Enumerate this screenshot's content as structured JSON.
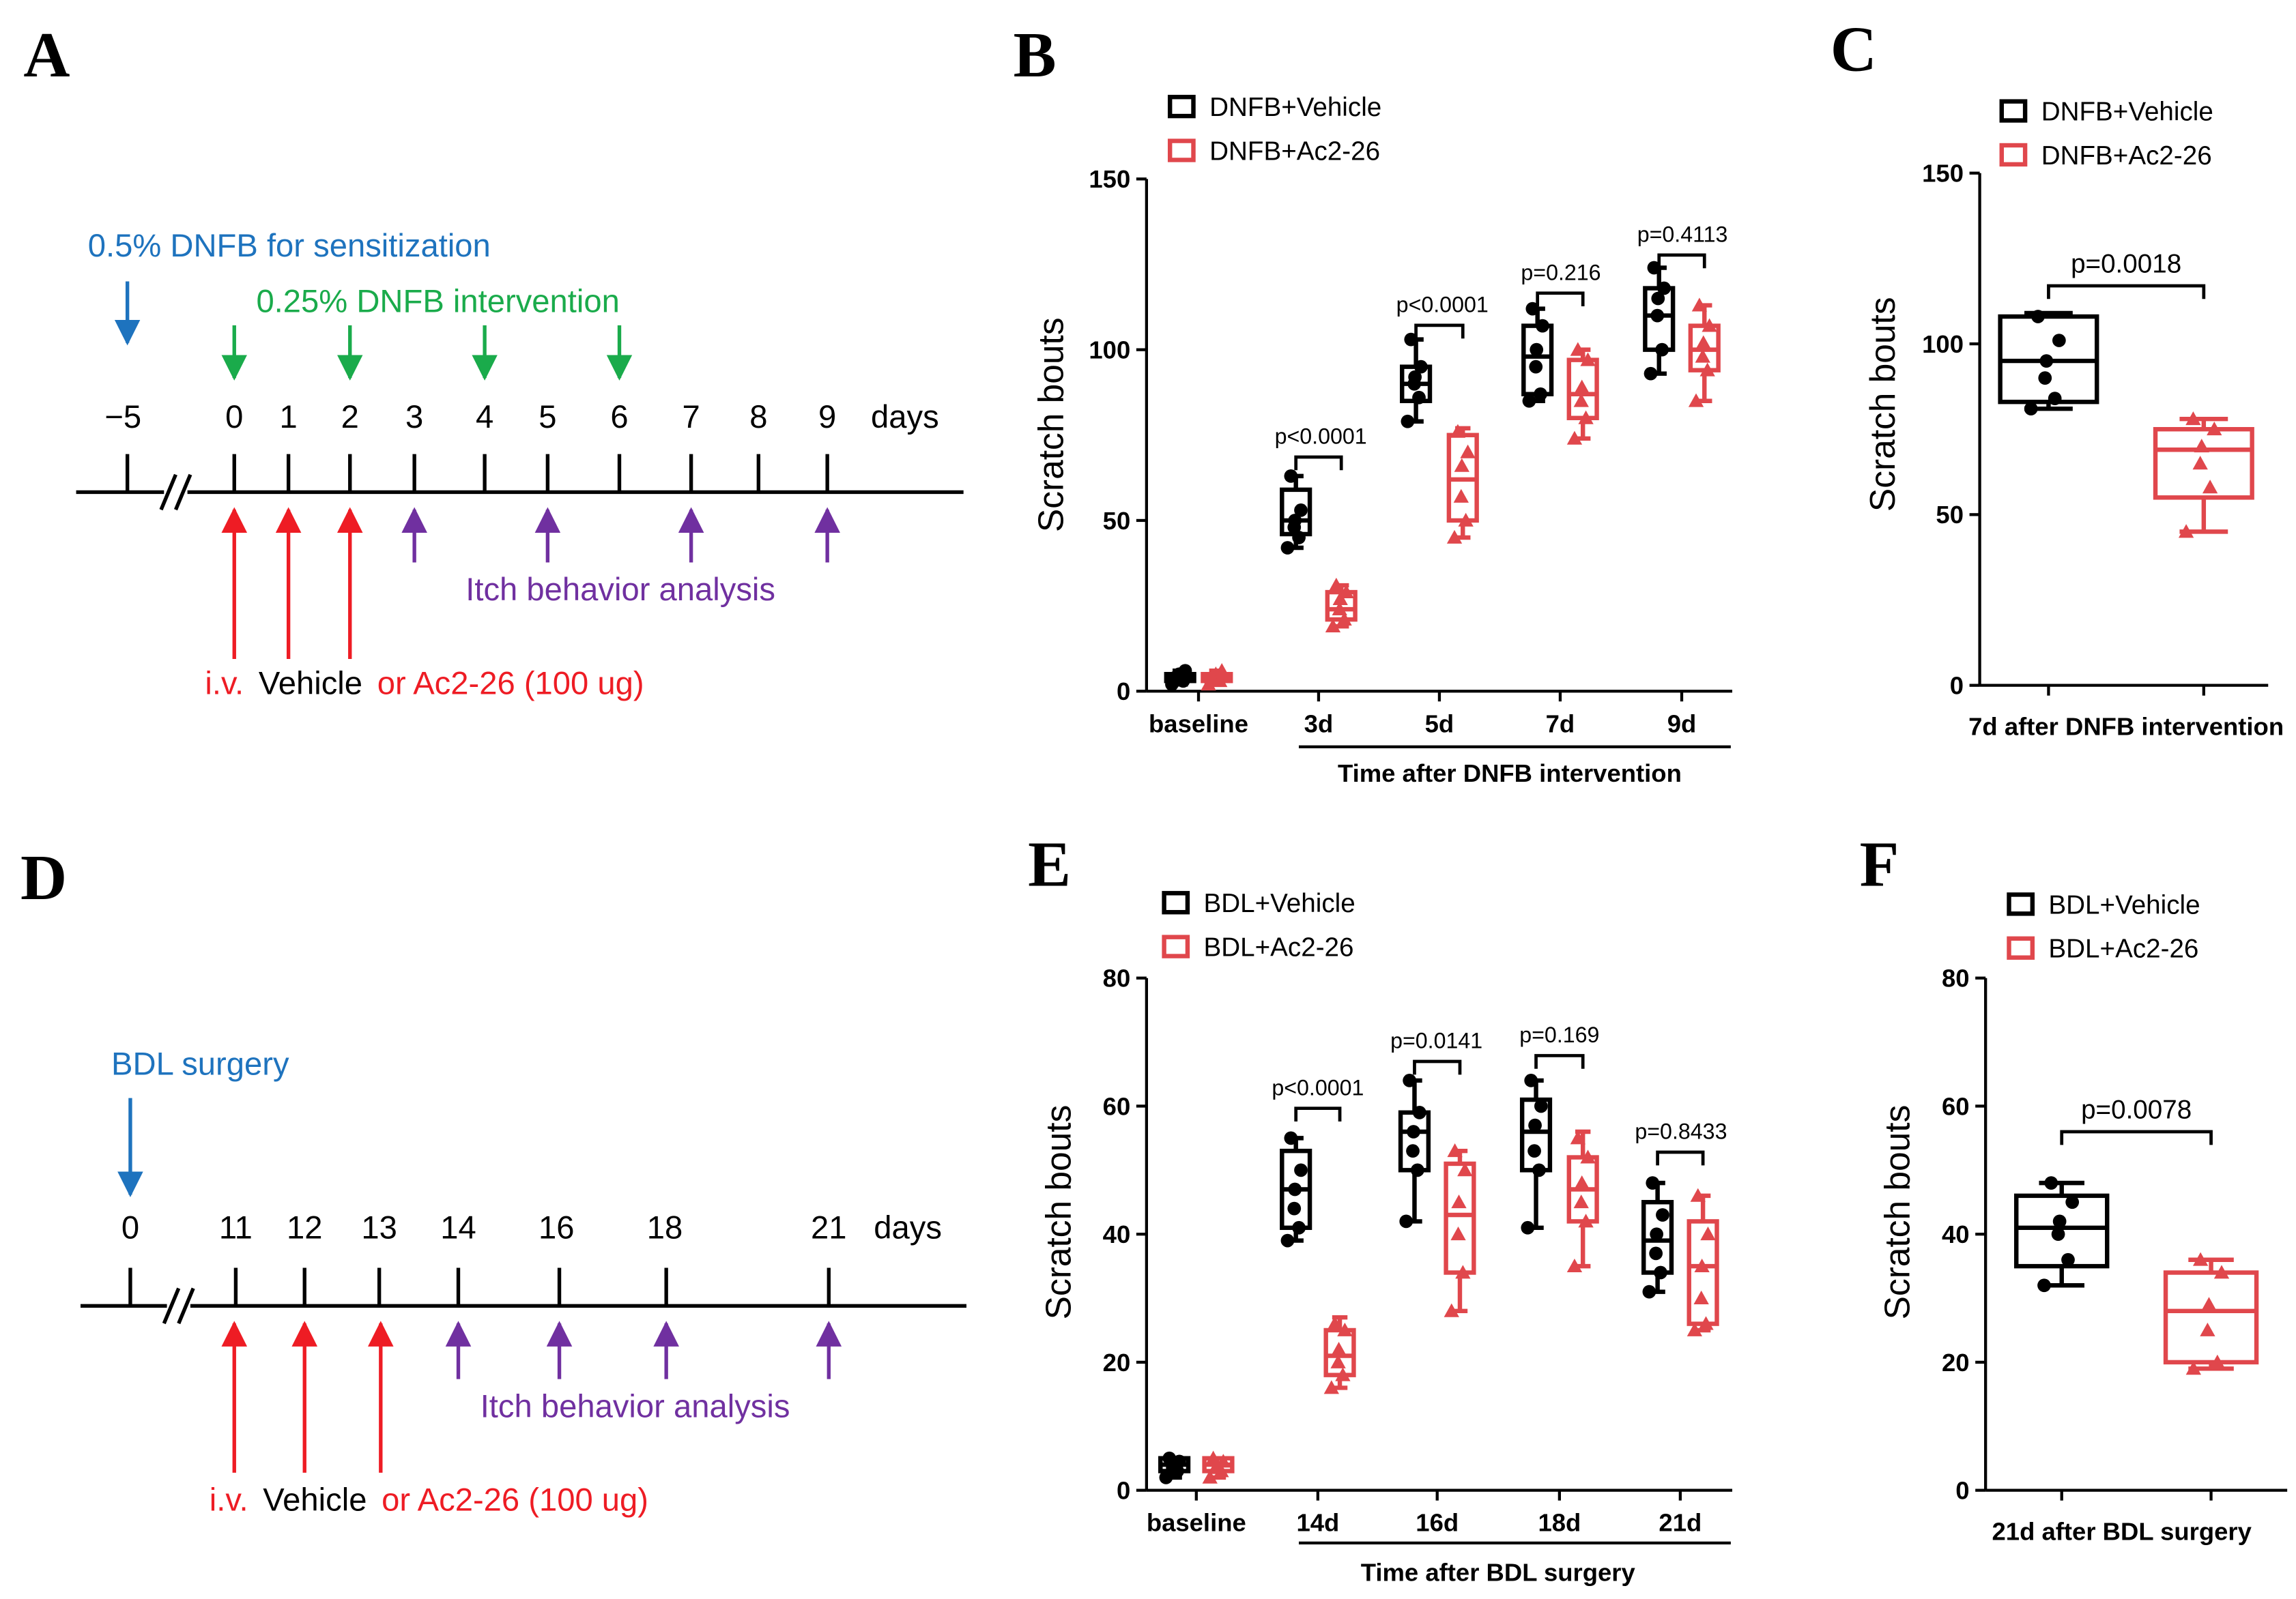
{
  "colors": {
    "vehicle": "#000000",
    "ac": "#e0474c",
    "blue": "#1e73be",
    "green": "#1aab4b",
    "purple": "#7030a0",
    "red": "#ee1c24",
    "axis": "#000000"
  },
  "panels": {
    "A": {
      "label": "A",
      "sens_label": "0.5% DNFB for sensitization",
      "interv_label": "0.25% DNFB intervention",
      "days": [
        "−5",
        "0",
        "1",
        "2",
        "3",
        "4",
        "5",
        "6",
        "7",
        "8",
        "9"
      ],
      "days_unit": "days",
      "analysis_label": "Itch behavior analysis",
      "treat_prefix": "i.v.",
      "treat_mid": "Vehicle",
      "treat_suffix": "or Ac2-26 (100 ug)"
    },
    "D": {
      "label": "D",
      "surgery_label": "BDL surgery",
      "days": [
        "0",
        "11",
        "12",
        "13",
        "14",
        "16",
        "18",
        "21"
      ],
      "days_unit": "days",
      "analysis_label": "Itch behavior analysis",
      "treat_prefix": "i.v.",
      "treat_mid": "Vehicle",
      "treat_suffix": "or Ac2-26 (100 ug)"
    },
    "B": {
      "label": "B",
      "legend": [
        "DNFB+Vehicle",
        "DNFB+Ac2-26"
      ]
    },
    "C": {
      "label": "C",
      "legend": [
        "DNFB+Vehicle",
        "DNFB+Ac2-26"
      ]
    },
    "E": {
      "label": "E",
      "legend": [
        "BDL+Vehicle",
        "BDL+Ac2-26"
      ]
    },
    "F": {
      "label": "F",
      "legend": [
        "BDL+Vehicle",
        "BDL+Ac2-26"
      ]
    }
  },
  "chart_data": [
    {
      "id": "B",
      "type": "box",
      "ylabel": "Scratch bouts",
      "ylim": [
        0,
        150
      ],
      "yticks": [
        0,
        50,
        100,
        150
      ],
      "categories": [
        "baseline",
        "3d",
        "5d",
        "7d",
        "9d"
      ],
      "group_label": "Time after DNFB intervention",
      "series": [
        {
          "name": "DNFB+Vehicle",
          "boxes": [
            {
              "min": 2,
              "q1": 3,
              "median": 4,
              "q3": 5,
              "max": 6,
              "points": [
                2,
                3,
                4,
                5,
                6,
                4
              ]
            },
            {
              "min": 42,
              "q1": 46,
              "median": 50,
              "q3": 59,
              "max": 63,
              "points": [
                42,
                45,
                48,
                50,
                53,
                63
              ]
            },
            {
              "min": 79,
              "q1": 85,
              "median": 90,
              "q3": 95,
              "max": 103,
              "points": [
                79,
                86,
                90,
                92,
                95,
                103
              ]
            },
            {
              "min": 85,
              "q1": 87,
              "median": 98,
              "q3": 107,
              "max": 112,
              "points": [
                85,
                87,
                95,
                100,
                107,
                112
              ]
            },
            {
              "min": 93,
              "q1": 100,
              "median": 110,
              "q3": 118,
              "max": 124,
              "points": [
                93,
                100,
                110,
                115,
                118,
                124
              ]
            }
          ]
        },
        {
          "name": "DNFB+Ac2-26",
          "boxes": [
            {
              "min": 2,
              "q1": 3,
              "median": 4,
              "q3": 5,
              "max": 6,
              "points": [
                2,
                3,
                4,
                5,
                6,
                4
              ]
            },
            {
              "min": 19,
              "q1": 21,
              "median": 24,
              "q3": 29,
              "max": 31,
              "points": [
                19,
                21,
                24,
                27,
                29,
                31
              ]
            },
            {
              "min": 45,
              "q1": 50,
              "median": 62,
              "q3": 75,
              "max": 77,
              "points": [
                45,
                50,
                57,
                66,
                70,
                76
              ]
            },
            {
              "min": 74,
              "q1": 80,
              "median": 87,
              "q3": 97,
              "max": 100,
              "points": [
                74,
                80,
                85,
                89,
                97,
                100
              ]
            },
            {
              "min": 85,
              "q1": 94,
              "median": 100,
              "q3": 107,
              "max": 113,
              "points": [
                85,
                94,
                98,
                102,
                107,
                113
              ]
            }
          ]
        }
      ],
      "annotations": [
        {
          "category": "3d",
          "text": "p<0.0001"
        },
        {
          "category": "5d",
          "text": "p<0.0001"
        },
        {
          "category": "7d",
          "text": "p=0.216"
        },
        {
          "category": "9d",
          "text": "p=0.4113"
        }
      ]
    },
    {
      "id": "C",
      "type": "box",
      "ylabel": "Scratch bouts",
      "ylim": [
        0,
        150
      ],
      "yticks": [
        0,
        50,
        100,
        150
      ],
      "categories": [
        "DNFB+Vehicle",
        "DNFB+Ac2-26"
      ],
      "group_label": "7d after DNFB intervention",
      "series": [
        {
          "name": "DNFB+Vehicle",
          "boxes": [
            {
              "min": 81,
              "q1": 83,
              "median": 95,
              "q3": 108,
              "max": 109,
              "points": [
                81,
                84,
                90,
                95,
                101,
                108
              ]
            }
          ]
        },
        {
          "name": "DNFB+Ac2-26",
          "boxes": [
            {
              "min": 45,
              "q1": 55,
              "median": 69,
              "q3": 75,
              "max": 78,
              "points": [
                45,
                58,
                65,
                70,
                75,
                78
              ]
            }
          ]
        }
      ],
      "annotations": [
        {
          "text": "p=0.0018"
        }
      ]
    },
    {
      "id": "E",
      "type": "box",
      "ylabel": "Scratch bouts",
      "ylim": [
        0,
        80
      ],
      "yticks": [
        0,
        20,
        40,
        60,
        80
      ],
      "categories": [
        "baseline",
        "14d",
        "16d",
        "18d",
        "21d"
      ],
      "group_label": "Time after BDL surgery",
      "series": [
        {
          "name": "BDL+Vehicle",
          "boxes": [
            {
              "min": 2,
              "q1": 3,
              "median": 4,
              "q3": 5,
              "max": 5,
              "points": [
                2,
                3,
                3.5,
                4,
                4.5,
                5
              ]
            },
            {
              "min": 39,
              "q1": 41,
              "median": 47,
              "q3": 53,
              "max": 55,
              "points": [
                39,
                41,
                44,
                47,
                50,
                55
              ]
            },
            {
              "min": 42,
              "q1": 50,
              "median": 56,
              "q3": 59,
              "max": 64,
              "points": [
                42,
                50,
                53,
                56,
                59,
                64
              ]
            },
            {
              "min": 41,
              "q1": 50,
              "median": 56,
              "q3": 61,
              "max": 64,
              "points": [
                41,
                50,
                53,
                57,
                60,
                64
              ]
            },
            {
              "min": 31,
              "q1": 34,
              "median": 39,
              "q3": 45,
              "max": 48,
              "points": [
                31,
                34,
                37,
                40,
                43,
                48
              ]
            }
          ]
        },
        {
          "name": "BDL+Ac2-26",
          "boxes": [
            {
              "min": 2,
              "q1": 3,
              "median": 4,
              "q3": 5,
              "max": 5,
              "points": [
                2,
                3,
                3.5,
                4,
                4.5,
                5
              ]
            },
            {
              "min": 16,
              "q1": 18,
              "median": 21,
              "q3": 25,
              "max": 27,
              "points": [
                16,
                18,
                20,
                22,
                25,
                26
              ]
            },
            {
              "min": 28,
              "q1": 34,
              "median": 43,
              "q3": 51,
              "max": 53,
              "points": [
                28,
                34,
                40,
                45,
                50,
                53
              ]
            },
            {
              "min": 35,
              "q1": 42,
              "median": 47,
              "q3": 52,
              "max": 56,
              "points": [
                35,
                42,
                45,
                48,
                52,
                55
              ]
            },
            {
              "min": 25,
              "q1": 26,
              "median": 35,
              "q3": 42,
              "max": 46,
              "points": [
                25,
                26,
                30,
                35,
                40,
                46
              ]
            }
          ]
        }
      ],
      "annotations": [
        {
          "category": "14d",
          "text": "p<0.0001"
        },
        {
          "category": "16d",
          "text": "p=0.0141"
        },
        {
          "category": "18d",
          "text": "p=0.169"
        },
        {
          "category": "21d",
          "text": "p=0.8433"
        }
      ]
    },
    {
      "id": "F",
      "type": "box",
      "ylabel": "Scratch bouts",
      "ylim": [
        0,
        80
      ],
      "yticks": [
        0,
        20,
        40,
        60,
        80
      ],
      "categories": [
        "BDL+Vehicle",
        "BDL+Ac2-26"
      ],
      "group_label": "21d after BDL surgery",
      "series": [
        {
          "name": "BDL+Vehicle",
          "boxes": [
            {
              "min": 32,
              "q1": 35,
              "median": 41,
              "q3": 46,
              "max": 48,
              "points": [
                32,
                36,
                40,
                42,
                45,
                48
              ]
            }
          ]
        },
        {
          "name": "BDL+Ac2-26",
          "boxes": [
            {
              "min": 19,
              "q1": 20,
              "median": 28,
              "q3": 34,
              "max": 36,
              "points": [
                19,
                20,
                25,
                29,
                34,
                36
              ]
            }
          ]
        }
      ],
      "annotations": [
        {
          "text": "p=0.0078"
        }
      ]
    }
  ]
}
